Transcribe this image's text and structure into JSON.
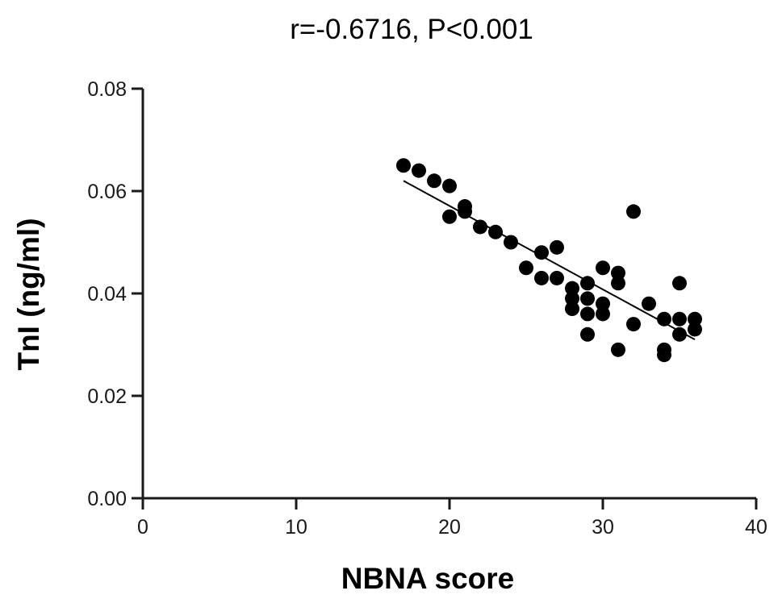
{
  "chart_data": {
    "type": "scatter",
    "title": "r=-0.6716,  P<0.001",
    "xlabel": "NBNA score",
    "ylabel": "TnI (ng/ml)",
    "xlim": [
      0,
      40
    ],
    "ylim": [
      0,
      0.08
    ],
    "x_ticks": [
      "0",
      "10",
      "20",
      "30",
      "40"
    ],
    "y_ticks": [
      "0.00",
      "0.02",
      "0.04",
      "0.06",
      "0.08"
    ],
    "grid": false,
    "marker_color": "#000000",
    "points": [
      {
        "x": 17,
        "y": 0.065
      },
      {
        "x": 18,
        "y": 0.064
      },
      {
        "x": 19,
        "y": 0.062
      },
      {
        "x": 20,
        "y": 0.061
      },
      {
        "x": 20,
        "y": 0.055
      },
      {
        "x": 21,
        "y": 0.057
      },
      {
        "x": 21,
        "y": 0.056
      },
      {
        "x": 22,
        "y": 0.053
      },
      {
        "x": 23,
        "y": 0.052
      },
      {
        "x": 24,
        "y": 0.05
      },
      {
        "x": 25,
        "y": 0.045
      },
      {
        "x": 26,
        "y": 0.048
      },
      {
        "x": 26,
        "y": 0.043
      },
      {
        "x": 27,
        "y": 0.049
      },
      {
        "x": 27,
        "y": 0.043
      },
      {
        "x": 28,
        "y": 0.041
      },
      {
        "x": 28,
        "y": 0.039
      },
      {
        "x": 28,
        "y": 0.037
      },
      {
        "x": 29,
        "y": 0.042
      },
      {
        "x": 29,
        "y": 0.039
      },
      {
        "x": 29,
        "y": 0.036
      },
      {
        "x": 29,
        "y": 0.032
      },
      {
        "x": 30,
        "y": 0.045
      },
      {
        "x": 30,
        "y": 0.038
      },
      {
        "x": 30,
        "y": 0.036
      },
      {
        "x": 31,
        "y": 0.044
      },
      {
        "x": 31,
        "y": 0.042
      },
      {
        "x": 31,
        "y": 0.029
      },
      {
        "x": 32,
        "y": 0.056
      },
      {
        "x": 32,
        "y": 0.034
      },
      {
        "x": 33,
        "y": 0.038
      },
      {
        "x": 34,
        "y": 0.035
      },
      {
        "x": 34,
        "y": 0.029
      },
      {
        "x": 34,
        "y": 0.028
      },
      {
        "x": 35,
        "y": 0.042
      },
      {
        "x": 35,
        "y": 0.035
      },
      {
        "x": 35,
        "y": 0.032
      },
      {
        "x": 36,
        "y": 0.035
      },
      {
        "x": 36,
        "y": 0.033
      }
    ],
    "fit_line": {
      "x": [
        17,
        36
      ],
      "y": [
        0.062,
        0.031
      ]
    }
  }
}
